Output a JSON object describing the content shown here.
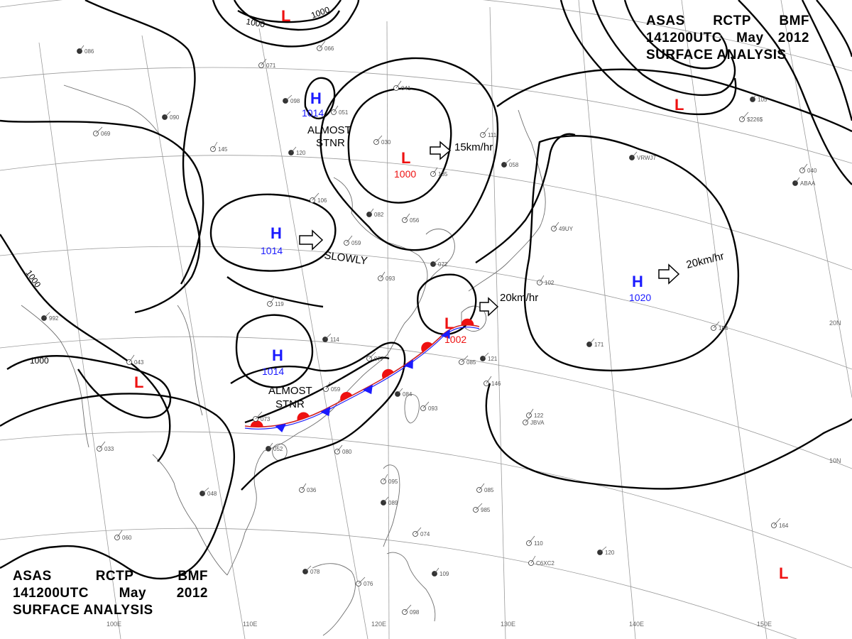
{
  "header": {
    "line1": [
      "ASAS",
      "RCTP",
      "BMF"
    ],
    "line2": [
      "141200UTC",
      "May",
      "2012"
    ],
    "line3": "SURFACE ANALYSIS"
  },
  "colors": {
    "high": "#1a1aff",
    "low": "#ee1111",
    "cold_front": "#1a1aff",
    "warm_front": "#ee1111",
    "isobar": "#000000",
    "grid": "#999999",
    "coast": "#666666"
  },
  "pressure_centers": [
    {
      "type": "H",
      "value": "1014"
    },
    {
      "type": "H",
      "value": "1014"
    },
    {
      "type": "H",
      "value": "1014"
    },
    {
      "type": "H",
      "value": "1020"
    },
    {
      "type": "L",
      "value": "1000"
    },
    {
      "type": "L",
      "value": "1002"
    },
    {
      "type": "L",
      "value": ""
    },
    {
      "type": "L",
      "value": ""
    },
    {
      "type": "L",
      "value": ""
    },
    {
      "type": "L",
      "value": ""
    }
  ],
  "movements": {
    "almost_stnr_1": [
      "ALMOST",
      "STNR"
    ],
    "almost_stnr_2": [
      "ALMOST",
      "STNR"
    ],
    "slowly": "SLOWLY",
    "speed_15": "15km/hr",
    "speed_20_east": "20km/hr",
    "speed_20_taiwan": "20km/hr"
  },
  "isobar_labels": [
    "1000",
    "1000",
    "1000",
    "1000"
  ],
  "lon_labels": [
    "100E",
    "110E",
    "120E",
    "130E",
    "140E",
    "150E"
  ],
  "lat_labels": [
    "20N",
    "10N"
  ],
  "station_labels": [
    "086",
    "071",
    "066",
    "098",
    "051",
    "041",
    "090",
    "069",
    "145",
    "120",
    "030",
    "106",
    "082",
    "056",
    "059",
    "072",
    "093",
    "119",
    "114",
    "077",
    "059",
    "084",
    "093",
    "073",
    "052",
    "080",
    "033",
    "048",
    "036",
    "060",
    "078",
    "076",
    "095",
    "089",
    "074",
    "098",
    "109",
    "085",
    "110",
    "120",
    "122",
    "146",
    "121",
    "085",
    "102",
    "171",
    "184",
    "164",
    "105",
    "040",
    "111",
    "058",
    "135",
    "043",
    "992",
    "985",
    "C6XC2",
    "VRWJ7",
    "JBVA",
    "$226$",
    "ABAA",
    "49UY"
  ]
}
